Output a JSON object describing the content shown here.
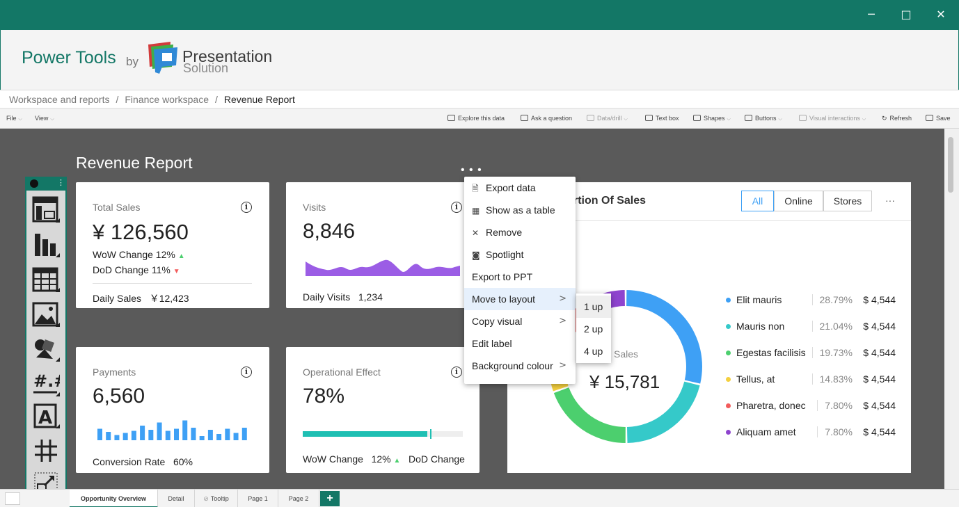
{
  "window": {
    "minimize": "─",
    "maximize": "□",
    "close": "✕",
    "color": "#137766"
  },
  "header": {
    "brand": "Power Tools",
    "by": "by",
    "logo_line1": "Presentation",
    "logo_line2": "Solution"
  },
  "breadcrumb": {
    "items": [
      "Workspace and reports",
      "Finance workspace",
      "Revenue Report"
    ],
    "separator": "/"
  },
  "toolbar": {
    "file": "File",
    "view": "View",
    "explore": "Explore this data",
    "ask": "Ask a question",
    "datadrill": "Data/drill",
    "textbox": "Text box",
    "shapes": "Shapes",
    "buttons": "Buttons",
    "visual_interactions": "Visual interactions",
    "refresh": "Refresh",
    "save": "Save"
  },
  "report": {
    "title": "Revenue Report",
    "more": "• • •"
  },
  "cards": {
    "total_sales": {
      "label": "Total Sales",
      "value": "¥ 126,560",
      "wow": "WoW Change 12%",
      "dod": "DoD Change 11%",
      "footer_label": "Daily Sales",
      "footer_value": "￥12,423"
    },
    "visits": {
      "label": "Visits",
      "value": "8,846",
      "footer_label": "Daily Visits",
      "footer_value": "1,234",
      "color": "#9b5de5"
    },
    "payments": {
      "label": "Payments",
      "value": "6,560",
      "footer_label": "Conversion Rate",
      "footer_value": "60%",
      "bars": [
        0.55,
        0.4,
        0.25,
        0.35,
        0.45,
        0.7,
        0.5,
        0.85,
        0.45,
        0.55,
        0.95,
        0.6,
        0.2,
        0.5,
        0.3,
        0.55,
        0.35,
        0.6
      ]
    },
    "operational": {
      "label": "Operational Effect",
      "value": "78%",
      "progress": 0.78,
      "wow_label": "WoW Change",
      "wow_value": "12%",
      "dod_label": "DoD Change"
    }
  },
  "donut": {
    "title": "rtion Of Sales",
    "filters": [
      "All",
      "Online",
      "Stores"
    ],
    "more": "···",
    "center_label": "Sales",
    "center_value": "¥ 15,781",
    "legend": [
      {
        "name": "Elit mauris",
        "pct": "28.79%",
        "value": "$ 4,544",
        "color": "#3ea0f5"
      },
      {
        "name": "Mauris non",
        "pct": "21.04%",
        "value": "$ 4,544",
        "color": "#35c9c9"
      },
      {
        "name": "Egestas facilisis",
        "pct": "19.73%",
        "value": "$ 4,544",
        "color": "#4ccf6e"
      },
      {
        "name": "Tellus, at",
        "pct": "14.83%",
        "value": "$ 4,544",
        "color": "#f4d03f"
      },
      {
        "name": "Pharetra, donec",
        "pct": "7.80%",
        "value": "$ 4,544",
        "color": "#f25c5c"
      },
      {
        "name": "Aliquam amet",
        "pct": "7.80%",
        "value": "$ 4,544",
        "color": "#8e44ce"
      }
    ]
  },
  "context_menu": {
    "items": [
      {
        "label": "Export data",
        "icon": "file-icon",
        "glyph": "🗎"
      },
      {
        "label": "Show as a table",
        "icon": "table-icon",
        "glyph": "▦"
      },
      {
        "label": "Remove",
        "icon": "close-icon",
        "glyph": "✕"
      },
      {
        "label": "Spotlight",
        "icon": "camera-icon",
        "glyph": "◙"
      },
      {
        "label": "Export to PPT",
        "icon": "",
        "glyph": ""
      },
      {
        "label": "Move to layout",
        "icon": "",
        "glyph": ""
      },
      {
        "label": "Copy visual",
        "icon": "",
        "glyph": ""
      },
      {
        "label": "Edit label",
        "icon": "",
        "glyph": ""
      },
      {
        "label": "Background colour",
        "icon": "",
        "glyph": ""
      }
    ],
    "submenu": [
      "1 up",
      "2 up",
      "4 up"
    ]
  },
  "tabs": {
    "items": [
      "Opportunity Overview",
      "Detail",
      "Tooltip",
      "Page 1",
      "Page 2"
    ],
    "add": "+"
  }
}
